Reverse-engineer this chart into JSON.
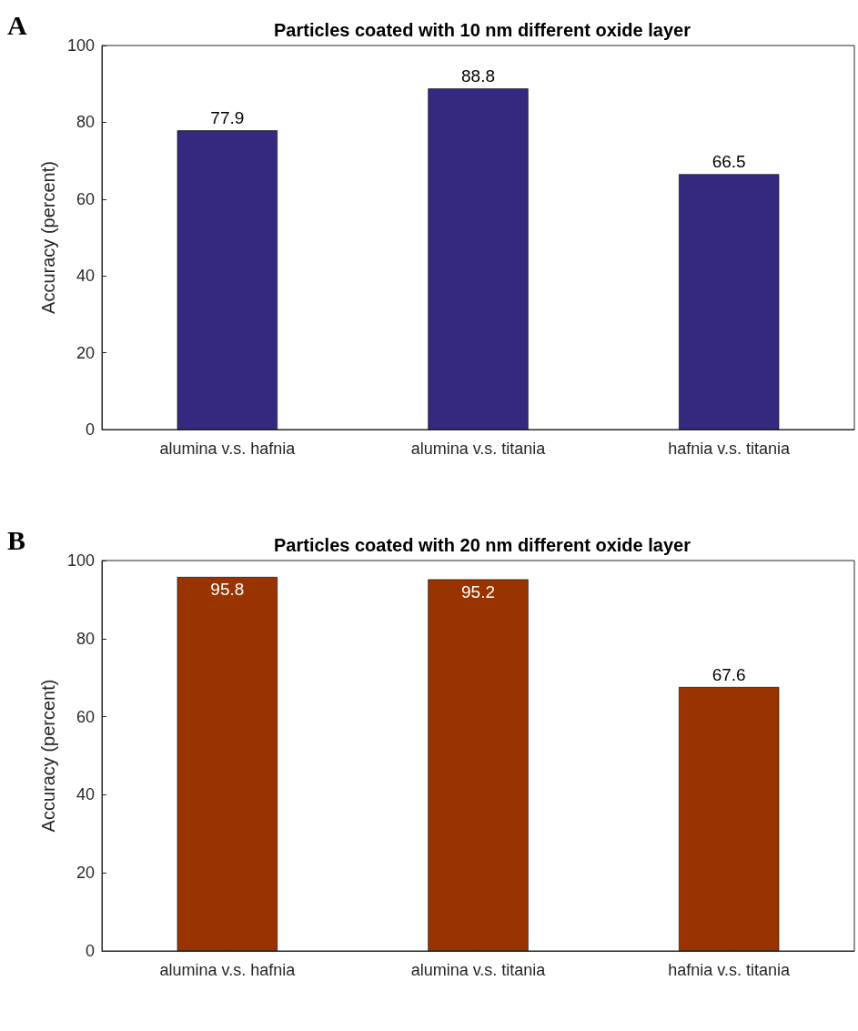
{
  "chart_data": [
    {
      "type": "bar",
      "title": "Particles coated with 10 nm different oxide layer",
      "ylabel": "Accuracy (percent)",
      "annotations": [
        "A"
      ],
      "categories": [
        "alumina v.s. hafnia",
        "alumina v.s. titania",
        "hafnia v.s. titania"
      ],
      "values": [
        77.9,
        88.8,
        66.5
      ],
      "color": "#332a80",
      "ylim": [
        0,
        100
      ],
      "yticks": [
        0,
        20,
        40,
        60,
        80,
        100
      ],
      "data_labels": true
    },
    {
      "type": "bar",
      "title": "Particles coated with 20 nm different oxide layer",
      "ylabel": "Accuracy (percent)",
      "annotations": [
        "B"
      ],
      "categories": [
        "alumina v.s. hafnia",
        "alumina v.s. titania",
        "hafnia v.s. titania"
      ],
      "values": [
        95.8,
        95.2,
        67.6
      ],
      "color": "#993300",
      "ylim": [
        0,
        100
      ],
      "yticks": [
        0,
        20,
        40,
        60,
        80,
        100
      ],
      "data_labels": true
    }
  ]
}
